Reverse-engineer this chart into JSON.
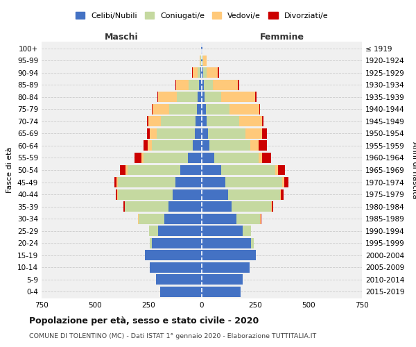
{
  "age_groups": [
    "0-4",
    "5-9",
    "10-14",
    "15-19",
    "20-24",
    "25-29",
    "30-34",
    "35-39",
    "40-44",
    "45-49",
    "50-54",
    "55-59",
    "60-64",
    "65-69",
    "70-74",
    "75-79",
    "80-84",
    "85-89",
    "90-94",
    "95-99",
    "100+"
  ],
  "birth_years": [
    "2015-2019",
    "2010-2014",
    "2005-2009",
    "2000-2004",
    "1995-1999",
    "1990-1994",
    "1985-1989",
    "1980-1984",
    "1975-1979",
    "1970-1974",
    "1965-1969",
    "1960-1964",
    "1955-1959",
    "1950-1954",
    "1945-1949",
    "1940-1944",
    "1935-1939",
    "1930-1934",
    "1925-1929",
    "1920-1924",
    "≤ 1919"
  ],
  "colors": {
    "celibe": "#4472c4",
    "coniugato": "#c5d9a0",
    "vedovo": "#ffc97a",
    "divorziato": "#cc0000"
  },
  "males": {
    "celibe": [
      195,
      215,
      245,
      265,
      235,
      205,
      175,
      155,
      135,
      125,
      100,
      65,
      42,
      32,
      30,
      22,
      18,
      14,
      7,
      4,
      2
    ],
    "coniugato": [
      0,
      0,
      0,
      2,
      10,
      42,
      122,
      205,
      258,
      268,
      248,
      208,
      192,
      178,
      162,
      130,
      98,
      48,
      14,
      2,
      0
    ],
    "vedovo": [
      0,
      0,
      0,
      0,
      0,
      0,
      1,
      2,
      2,
      5,
      8,
      10,
      18,
      32,
      58,
      78,
      88,
      58,
      22,
      4,
      0
    ],
    "divorziato": [
      0,
      0,
      0,
      0,
      0,
      1,
      2,
      5,
      8,
      12,
      28,
      32,
      22,
      15,
      8,
      5,
      5,
      4,
      2,
      0,
      0
    ]
  },
  "females": {
    "nubile": [
      182,
      192,
      225,
      252,
      232,
      192,
      162,
      138,
      122,
      112,
      92,
      58,
      36,
      28,
      22,
      18,
      14,
      10,
      6,
      4,
      2
    ],
    "coniugata": [
      0,
      0,
      0,
      2,
      10,
      38,
      112,
      188,
      245,
      265,
      252,
      208,
      192,
      178,
      152,
      112,
      78,
      42,
      18,
      4,
      0
    ],
    "vedova": [
      0,
      0,
      0,
      0,
      0,
      0,
      1,
      2,
      4,
      8,
      12,
      18,
      38,
      78,
      108,
      138,
      158,
      118,
      52,
      16,
      2
    ],
    "divorziata": [
      0,
      0,
      0,
      0,
      0,
      2,
      5,
      5,
      12,
      20,
      35,
      42,
      38,
      22,
      8,
      5,
      5,
      4,
      4,
      0,
      0
    ]
  },
  "title": "Popolazione per età, sesso e stato civile - 2020",
  "subtitle": "COMUNE DI TOLENTINO (MC) - Dati ISTAT 1° gennaio 2020 - Elaborazione TUTTITALIA.IT",
  "xlabel_left": "Maschi",
  "xlabel_right": "Femmine",
  "ylabel_left": "Fasce di età",
  "ylabel_right": "Anni di nascita",
  "xlim": 750,
  "legend_labels": [
    "Celibi/Nubili",
    "Coniugati/e",
    "Vedovi/e",
    "Divorziati/e"
  ],
  "bg_color": "#ffffff",
  "plot_bg": "#f0f0f0"
}
